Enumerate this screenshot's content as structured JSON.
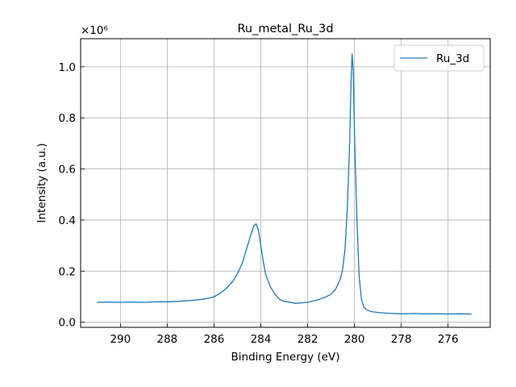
{
  "chart_data": {
    "type": "line",
    "title": "Ru_metal_Ru_3d",
    "xlabel": "Binding Energy (eV)",
    "ylabel": "Intensity (a.u.)",
    "x_inverted": true,
    "xlim": [
      291.7,
      274.2
    ],
    "ylim": [
      -0.02,
      1.11
    ],
    "y_scale_label": "×10⁶",
    "x_ticks": [
      290,
      288,
      286,
      284,
      282,
      280,
      278,
      276
    ],
    "x_tick_labels": [
      "290",
      "288",
      "286",
      "284",
      "282",
      "280",
      "278",
      "276"
    ],
    "y_ticks": [
      0.0,
      0.2,
      0.4,
      0.6,
      0.8,
      1.0
    ],
    "y_tick_labels": [
      "0.0",
      "0.2",
      "0.4",
      "0.6",
      "0.8",
      "1.0"
    ],
    "grid": true,
    "legend_position": "top-right",
    "series": [
      {
        "name": "Ru_3d",
        "color": "#1f77b4",
        "x": [
          291.0,
          290.5,
          290.0,
          289.5,
          289.0,
          288.5,
          288.0,
          287.5,
          287.0,
          286.5,
          286.2,
          286.0,
          285.8,
          285.5,
          285.2,
          285.0,
          284.8,
          284.6,
          284.5,
          284.4,
          284.3,
          284.2,
          284.1,
          284.0,
          283.9,
          283.8,
          283.6,
          283.4,
          283.2,
          283.0,
          282.5,
          282.0,
          281.5,
          281.2,
          281.0,
          280.8,
          280.6,
          280.5,
          280.4,
          280.3,
          280.2,
          280.15,
          280.1,
          280.05,
          280.0,
          279.9,
          279.8,
          279.7,
          279.6,
          279.5,
          279.3,
          279.0,
          278.5,
          278.0,
          277.5,
          277.0,
          276.5,
          276.0,
          275.5,
          275.0
        ],
        "y": [
          0.078,
          0.079,
          0.078,
          0.079,
          0.078,
          0.08,
          0.08,
          0.082,
          0.085,
          0.09,
          0.095,
          0.1,
          0.11,
          0.13,
          0.16,
          0.19,
          0.23,
          0.29,
          0.32,
          0.35,
          0.378,
          0.385,
          0.36,
          0.3,
          0.24,
          0.19,
          0.14,
          0.11,
          0.09,
          0.082,
          0.074,
          0.078,
          0.09,
          0.1,
          0.11,
          0.13,
          0.17,
          0.21,
          0.29,
          0.45,
          0.72,
          0.93,
          1.05,
          0.98,
          0.75,
          0.42,
          0.18,
          0.09,
          0.06,
          0.05,
          0.042,
          0.038,
          0.035,
          0.033,
          0.034,
          0.033,
          0.033,
          0.032,
          0.033,
          0.032
        ]
      }
    ]
  }
}
